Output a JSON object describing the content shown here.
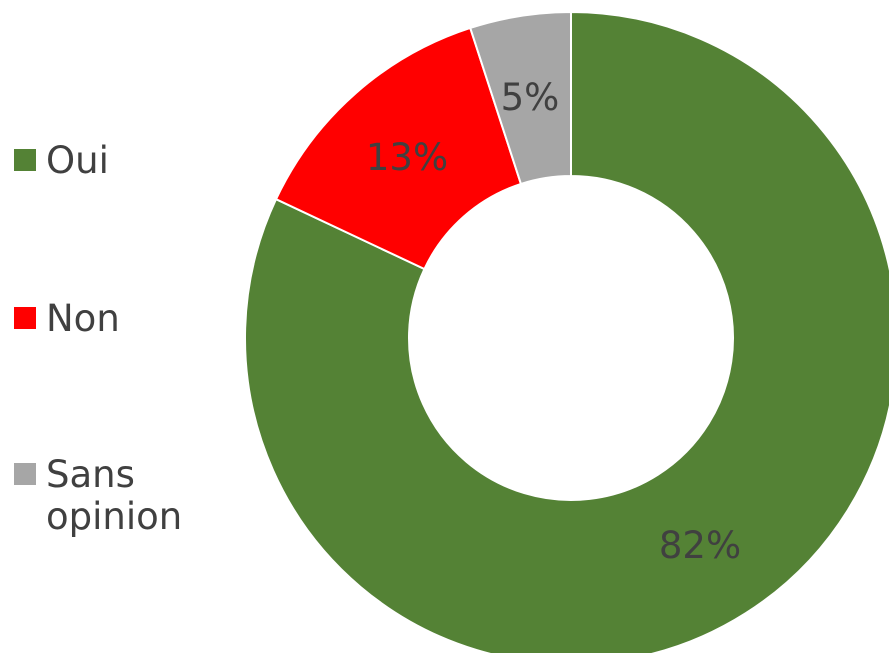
{
  "chart_data": {
    "type": "pie",
    "variant": "donut",
    "categories": [
      "Oui",
      "Non",
      "Sans opinion"
    ],
    "values": [
      82,
      13,
      5
    ],
    "data_labels": [
      "82%",
      "13%",
      "5%"
    ],
    "colors": [
      "#548235",
      "#ff0000",
      "#a6a6a6"
    ],
    "legend_position": "left",
    "title": "",
    "start_angle": "12 o'clock",
    "direction": "clockwise"
  }
}
